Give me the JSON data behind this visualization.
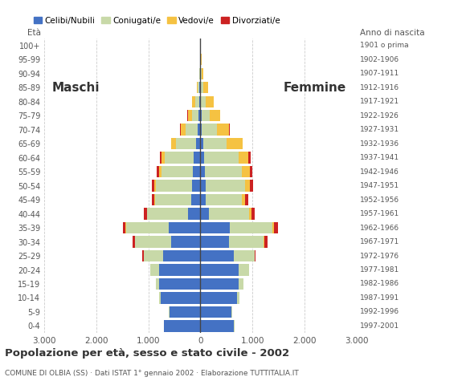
{
  "age_groups": [
    "0-4",
    "5-9",
    "10-14",
    "15-19",
    "20-24",
    "25-29",
    "30-34",
    "35-39",
    "40-44",
    "45-49",
    "50-54",
    "55-59",
    "60-64",
    "65-69",
    "70-74",
    "75-79",
    "80-84",
    "85-89",
    "90-94",
    "95-99",
    "100+"
  ],
  "birth_years": [
    "1997-2001",
    "1992-1996",
    "1987-1991",
    "1982-1986",
    "1977-1981",
    "1972-1976",
    "1967-1971",
    "1962-1966",
    "1957-1961",
    "1952-1956",
    "1947-1951",
    "1942-1946",
    "1937-1941",
    "1932-1936",
    "1927-1931",
    "1922-1926",
    "1917-1921",
    "1912-1916",
    "1907-1911",
    "1902-1906",
    "1901 o prima"
  ],
  "males_celibinubili": [
    700,
    600,
    760,
    790,
    790,
    710,
    560,
    610,
    240,
    170,
    160,
    145,
    135,
    90,
    55,
    40,
    28,
    14,
    4,
    2,
    0
  ],
  "males_coniugatii": [
    4,
    16,
    40,
    60,
    170,
    380,
    690,
    820,
    780,
    700,
    690,
    600,
    550,
    380,
    230,
    125,
    70,
    32,
    10,
    4,
    0
  ],
  "males_vedovii": [
    0,
    0,
    0,
    0,
    3,
    4,
    4,
    8,
    12,
    18,
    35,
    45,
    55,
    90,
    95,
    80,
    56,
    28,
    8,
    4,
    0
  ],
  "males_divorziatii": [
    0,
    0,
    0,
    3,
    8,
    18,
    48,
    58,
    58,
    48,
    48,
    48,
    38,
    8,
    8,
    4,
    0,
    0,
    0,
    0,
    0
  ],
  "females_celibinubili": [
    650,
    600,
    700,
    740,
    740,
    640,
    550,
    570,
    168,
    100,
    95,
    80,
    68,
    50,
    26,
    20,
    12,
    8,
    3,
    1,
    0
  ],
  "females_coniugatii": [
    4,
    16,
    48,
    80,
    190,
    400,
    660,
    810,
    760,
    700,
    760,
    720,
    660,
    460,
    290,
    155,
    90,
    48,
    18,
    4,
    0
  ],
  "females_vedovii": [
    0,
    0,
    0,
    4,
    4,
    8,
    18,
    38,
    48,
    58,
    98,
    148,
    198,
    298,
    240,
    200,
    148,
    88,
    38,
    18,
    4
  ],
  "females_divorziatii": [
    0,
    0,
    0,
    3,
    8,
    18,
    58,
    80,
    68,
    58,
    58,
    48,
    38,
    8,
    8,
    4,
    0,
    0,
    0,
    0,
    0
  ],
  "colors": {
    "celibinubili": "#4472C4",
    "coniugatii": "#c8d9a8",
    "vedovii": "#f5c242",
    "divorziatii": "#cc2222"
  },
  "xlim": 3000,
  "title": "Popolazione per età, sesso e stato civile - 2002",
  "subtitle": "COMUNE DI OLBIA (SS) · Dati ISTAT 1° gennaio 2002 · Elaborazione TUTTITALIA.IT",
  "ylabel_eta": "Età",
  "ylabel_anno": "Anno di nascita",
  "label_maschi": "Maschi",
  "label_femmine": "Femmine",
  "legend_labels": [
    "Celibi/Nubili",
    "Coniugati/e",
    "Vedovi/e",
    "Divorziati/e"
  ],
  "xticks": [
    -3000,
    -2000,
    -1000,
    0,
    1000,
    2000,
    3000
  ],
  "xtick_labels": [
    "3.000",
    "2.000",
    "1.000",
    "0",
    "1.000",
    "2.000",
    "3.000"
  ],
  "background_color": "#ffffff",
  "gridline_color": "#cccccc",
  "text_color": "#555555",
  "title_color": "#333333"
}
